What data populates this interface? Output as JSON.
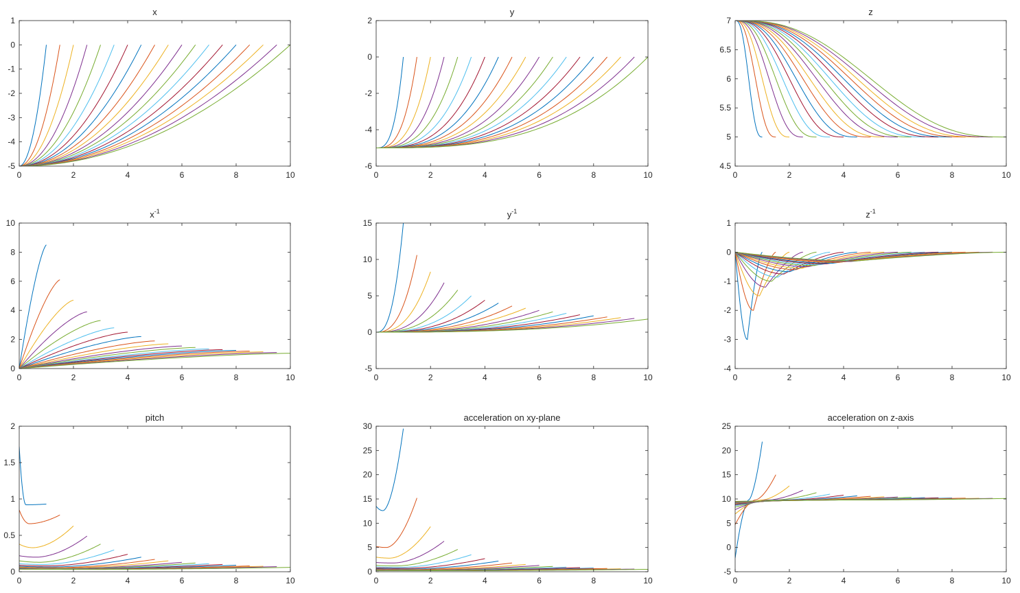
{
  "figure": {
    "palette": [
      "#0072BD",
      "#D95319",
      "#EDB120",
      "#7E2F8E",
      "#77AC30",
      "#4DBEEE",
      "#A2142F"
    ]
  },
  "chart_data": [
    {
      "type": "line",
      "title": "x",
      "xlabel": "",
      "ylabel": "",
      "xlim": [
        0,
        10
      ],
      "ylim": [
        -5,
        1
      ],
      "grid": false,
      "legend": "none",
      "xticks": [
        0,
        2,
        4,
        6,
        8,
        10
      ],
      "yticks": [
        -5,
        -4,
        -3,
        -2,
        -1,
        0,
        1
      ],
      "curve_family": {
        "kind": "rise_power",
        "start": -5,
        "end": 0,
        "exponent": 2,
        "durations_start": 1,
        "durations_step": 0.5,
        "count": 19
      },
      "series_endpoints": {
        "x": [
          1,
          1.5,
          2,
          2.5,
          3,
          3.5,
          4,
          4.5,
          5,
          5.5,
          6,
          6.5,
          7,
          7.5,
          8,
          8.5,
          9,
          9.5,
          10
        ],
        "y_start": -5,
        "y_end": 0
      }
    },
    {
      "type": "line",
      "title": "y",
      "xlabel": "",
      "ylabel": "",
      "xlim": [
        0,
        10
      ],
      "ylim": [
        -6,
        2
      ],
      "grid": false,
      "legend": "none",
      "xticks": [
        0,
        2,
        4,
        6,
        8,
        10
      ],
      "yticks": [
        -6,
        -4,
        -2,
        0,
        2
      ],
      "curve_family": {
        "kind": "rise_power",
        "start": -5,
        "end": 0,
        "exponent": 3,
        "durations_start": 1,
        "durations_step": 0.5,
        "count": 19
      },
      "series_endpoints": {
        "x": [
          1,
          1.5,
          2,
          2.5,
          3,
          3.5,
          4,
          4.5,
          5,
          5.5,
          6,
          6.5,
          7,
          7.5,
          8,
          8.5,
          9,
          9.5,
          10
        ],
        "y_start": -5,
        "y_end": 0
      }
    },
    {
      "type": "line",
      "title": "z",
      "xlabel": "",
      "ylabel": "",
      "xlim": [
        0,
        10
      ],
      "ylim": [
        4.5,
        7
      ],
      "grid": false,
      "legend": "none",
      "xticks": [
        0,
        2,
        4,
        6,
        8,
        10
      ],
      "yticks": [
        4.5,
        5,
        5.5,
        6,
        6.5,
        7
      ],
      "curve_family": {
        "kind": "smooth_drop",
        "start": 7,
        "end": 5,
        "durations_start": 1,
        "durations_step": 0.5,
        "count": 19
      },
      "series_endpoints": {
        "x": [
          1,
          1.5,
          2,
          2.5,
          3,
          3.5,
          4,
          4.5,
          5,
          5.5,
          6,
          6.5,
          7,
          7.5,
          8,
          8.5,
          9,
          9.5,
          10
        ],
        "y_start": 7,
        "y_end": 5
      }
    },
    {
      "type": "line",
      "title": "x",
      "title_superscript": "-1",
      "xlabel": "",
      "ylabel": "",
      "xlim": [
        0,
        10
      ],
      "ylim": [
        0,
        10
      ],
      "grid": false,
      "legend": "none",
      "xticks": [
        0,
        2,
        4,
        6,
        8,
        10
      ],
      "yticks": [
        0,
        2,
        4,
        6,
        8,
        10
      ],
      "curve_family": {
        "kind": "concave_rise",
        "start": 0,
        "durations_start": 1,
        "durations_step": 0.5,
        "count": 19
      },
      "end_values": [
        8.5,
        6.1,
        4.7,
        3.9,
        3.3,
        2.8,
        2.5,
        2.2,
        1.9,
        1.7,
        1.55,
        1.45,
        1.35,
        1.3,
        1.25,
        1.2,
        1.15,
        1.1,
        1.05
      ]
    },
    {
      "type": "line",
      "title": "y",
      "title_superscript": "-1",
      "xlabel": "",
      "ylabel": "",
      "xlim": [
        0,
        10
      ],
      "ylim": [
        -5,
        15
      ],
      "grid": false,
      "legend": "none",
      "xticks": [
        0,
        2,
        4,
        6,
        8,
        10
      ],
      "yticks": [
        -5,
        0,
        5,
        10,
        15
      ],
      "curve_family": {
        "kind": "convex_rise",
        "start": 0,
        "durations_start": 1,
        "durations_step": 0.5,
        "count": 19
      },
      "end_values": [
        15,
        10.6,
        8.3,
        6.8,
        5.8,
        5.0,
        4.4,
        4.0,
        3.6,
        3.3,
        3.0,
        2.8,
        2.6,
        2.4,
        2.25,
        2.1,
        2.0,
        1.9,
        1.8
      ]
    },
    {
      "type": "line",
      "title": "z",
      "title_superscript": "-1",
      "xlabel": "",
      "ylabel": "",
      "xlim": [
        0,
        10
      ],
      "ylim": [
        -4,
        1
      ],
      "grid": false,
      "legend": "none",
      "xticks": [
        0,
        2,
        4,
        6,
        8,
        10
      ],
      "yticks": [
        -4,
        -3,
        -2,
        -1,
        0,
        1
      ],
      "curve_family": {
        "kind": "dip_return",
        "start": 0,
        "end": 0,
        "durations_start": 1,
        "durations_step": 0.5,
        "count": 19
      },
      "dip_values": [
        -3.0,
        -2.0,
        -1.5,
        -1.2,
        -1.0,
        -0.86,
        -0.75,
        -0.67,
        -0.6,
        -0.55,
        -0.5,
        -0.46,
        -0.43,
        -0.4,
        -0.38,
        -0.35,
        -0.33,
        -0.32,
        -0.3
      ]
    },
    {
      "type": "line",
      "title": "pitch",
      "xlabel": "",
      "ylabel": "",
      "xlim": [
        0,
        10
      ],
      "ylim": [
        0,
        2
      ],
      "grid": false,
      "legend": "none",
      "xticks": [
        0,
        2,
        4,
        6,
        8,
        10
      ],
      "yticks": [
        0,
        0.5,
        1,
        1.5,
        2
      ],
      "curve_family": {
        "kind": "u_curve",
        "durations_start": 1,
        "durations_step": 0.5,
        "count": 19
      },
      "start_values": [
        1.72,
        0.85,
        0.38,
        0.22,
        0.15,
        0.11,
        0.09,
        0.075,
        0.065,
        0.058,
        0.052,
        0.048,
        0.045,
        0.042,
        0.04,
        0.038,
        0.037,
        0.036,
        0.035
      ],
      "min_values": [
        0.92,
        0.66,
        0.33,
        0.2,
        0.13,
        0.1,
        0.08,
        0.065,
        0.055,
        0.05,
        0.045,
        0.042,
        0.04,
        0.038,
        0.036,
        0.035,
        0.034,
        0.033,
        0.032
      ],
      "end_values": [
        0.93,
        0.78,
        0.63,
        0.49,
        0.38,
        0.3,
        0.24,
        0.2,
        0.17,
        0.15,
        0.13,
        0.12,
        0.11,
        0.1,
        0.09,
        0.08,
        0.075,
        0.07,
        0.06
      ]
    },
    {
      "type": "line",
      "title": "acceleration on xy-plane",
      "xlabel": "",
      "ylabel": "",
      "xlim": [
        0,
        10
      ],
      "ylim": [
        0,
        30
      ],
      "grid": false,
      "legend": "none",
      "xticks": [
        0,
        2,
        4,
        6,
        8,
        10
      ],
      "yticks": [
        0,
        5,
        10,
        15,
        20,
        25,
        30
      ],
      "curve_family": {
        "kind": "u_curve",
        "durations_start": 1,
        "durations_step": 0.5,
        "count": 19
      },
      "start_values": [
        13.5,
        5.2,
        3.0,
        1.9,
        1.3,
        1.0,
        0.8,
        0.65,
        0.55,
        0.47,
        0.42,
        0.38,
        0.35,
        0.32,
        0.3,
        0.28,
        0.26,
        0.25,
        0.24
      ],
      "min_values": [
        12.6,
        5.0,
        2.8,
        1.8,
        1.2,
        0.9,
        0.7,
        0.55,
        0.45,
        0.4,
        0.36,
        0.33,
        0.3,
        0.28,
        0.26,
        0.24,
        0.23,
        0.22,
        0.21
      ],
      "end_values": [
        29.5,
        15.2,
        9.3,
        6.3,
        4.6,
        3.5,
        2.7,
        2.2,
        1.8,
        1.5,
        1.3,
        1.1,
        0.95,
        0.85,
        0.75,
        0.68,
        0.6,
        0.55,
        0.5
      ]
    },
    {
      "type": "line",
      "title": "acceleration on z-axis",
      "xlabel": "",
      "ylabel": "",
      "xlim": [
        0,
        10
      ],
      "ylim": [
        -5,
        25
      ],
      "grid": false,
      "legend": "none",
      "xticks": [
        0,
        2,
        4,
        6,
        8,
        10
      ],
      "yticks": [
        -5,
        0,
        5,
        10,
        15,
        20,
        25
      ],
      "curve_family": {
        "kind": "antisymmetric",
        "center": 9.81,
        "durations_start": 1,
        "durations_step": 0.5,
        "count": 19
      },
      "start_values": [
        -2.2,
        4.7,
        6.9,
        7.8,
        8.3,
        8.6,
        8.8,
        8.95,
        9.05,
        9.15,
        9.2,
        9.25,
        9.3,
        9.35,
        9.4,
        9.42,
        9.45,
        9.47,
        9.5
      ],
      "end_values": [
        21.8,
        15.0,
        12.7,
        11.8,
        11.3,
        11.0,
        10.8,
        10.65,
        10.55,
        10.45,
        10.4,
        10.35,
        10.3,
        10.25,
        10.2,
        10.18,
        10.15,
        10.13,
        10.1
      ]
    }
  ]
}
